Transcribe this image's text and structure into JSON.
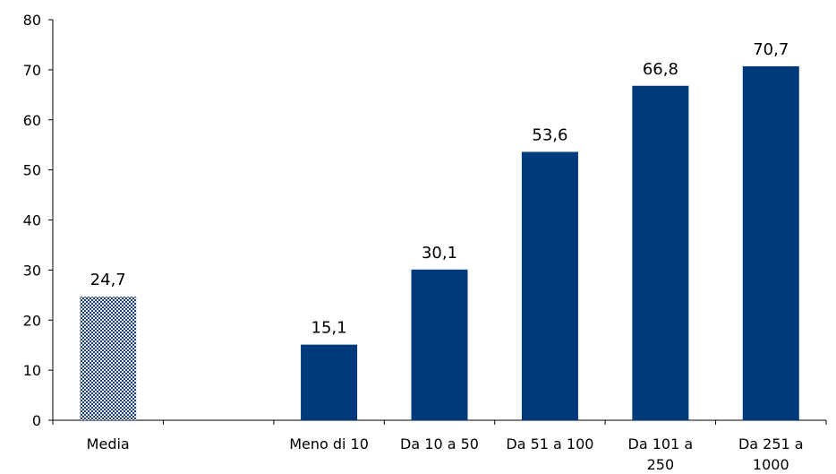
{
  "chart_data": {
    "type": "bar",
    "title": "",
    "xlabel": "",
    "ylabel": "",
    "ylim": [
      0,
      80
    ],
    "yticks": [
      0,
      10,
      20,
      30,
      40,
      50,
      60,
      70,
      80
    ],
    "grid": false,
    "legend": "none",
    "categories": [
      [
        "Media"
      ],
      [
        ""
      ],
      [
        "Meno di 10"
      ],
      [
        "Da 10 a 50"
      ],
      [
        "Da 51 a 100"
      ],
      [
        "Da 101 a",
        "250"
      ],
      [
        "Da 251 a",
        "1000"
      ]
    ],
    "values": [
      24.7,
      null,
      15.1,
      30.1,
      53.6,
      66.8,
      70.7
    ],
    "data_labels": [
      "24,7",
      "",
      "15,1",
      "30,1",
      "53,6",
      "66,8",
      "70,7"
    ],
    "colors": {
      "bar": "#003a7d",
      "average_bar_pattern_dark": "#1f3f78",
      "average_bar_pattern_light": "#e8edf5"
    }
  }
}
